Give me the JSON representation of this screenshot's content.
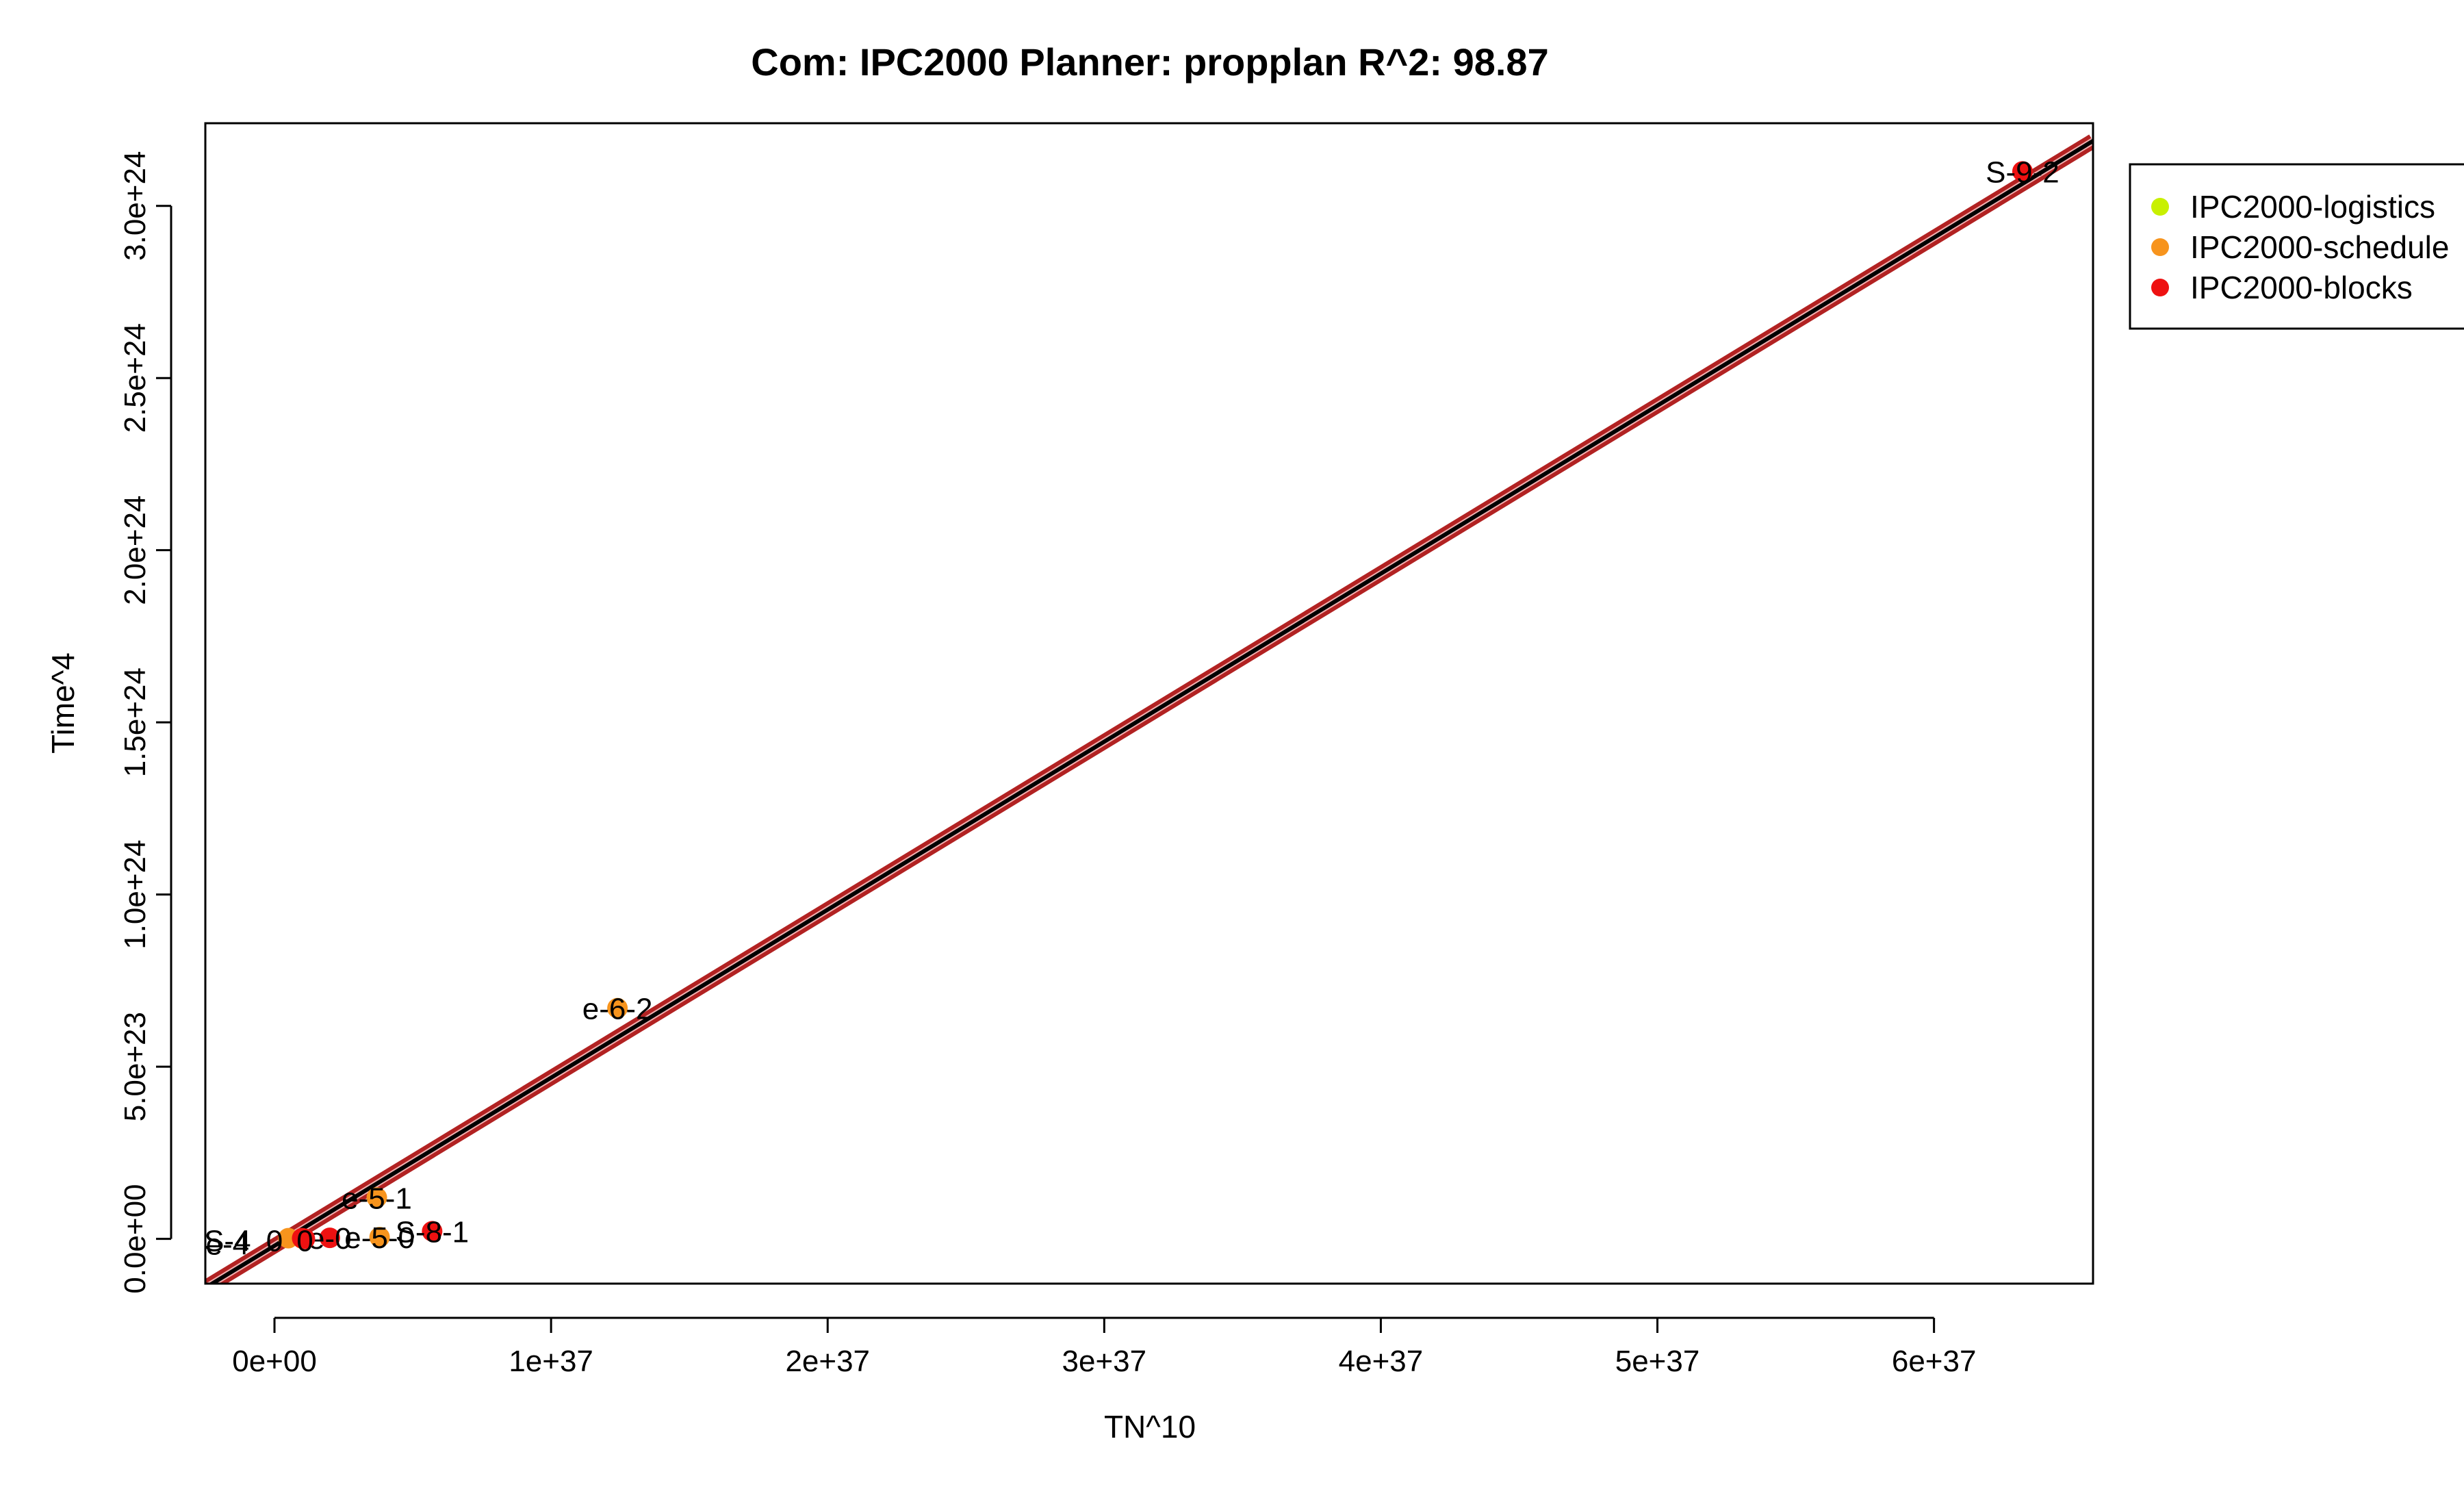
{
  "chart_data": {
    "type": "scatter",
    "title": "Com: IPC2000 Planner: propplan R^2: 98.87",
    "xlabel": "TN^10",
    "ylabel": "Time^4",
    "xlim": [
      -2.5e+36,
      6.575e+37
    ],
    "ylim": [
      -1.3e+23,
      3.24e+24
    ],
    "x_ticks": [
      {
        "value": 0,
        "label": "0e+00"
      },
      {
        "value": 1e+37,
        "label": "1e+37"
      },
      {
        "value": 2e+37,
        "label": "2e+37"
      },
      {
        "value": 3e+37,
        "label": "3e+37"
      },
      {
        "value": 4e+37,
        "label": "4e+37"
      },
      {
        "value": 5e+37,
        "label": "5e+37"
      },
      {
        "value": 6e+37,
        "label": "6e+37"
      }
    ],
    "y_ticks": [
      {
        "value": 0,
        "label": "0.0e+00"
      },
      {
        "value": 5e+23,
        "label": "5.0e+23"
      },
      {
        "value": 1e+24,
        "label": "1.0e+24"
      },
      {
        "value": 1.5e+24,
        "label": "1.5e+24"
      },
      {
        "value": 2e+24,
        "label": "2.0e+24"
      },
      {
        "value": 2.5e+24,
        "label": "2.5e+24"
      },
      {
        "value": 3e+24,
        "label": "3.0e+24"
      }
    ],
    "regression": {
      "slope": 4.88e-14,
      "intercept": -2e+22
    },
    "legend_position": "right-outside",
    "series": [
      {
        "name": "IPC2000-logistics",
        "color": "#c8f000",
        "points": []
      },
      {
        "name": "IPC2000-schedule",
        "color": "#f7941d",
        "points": [
          {
            "x": 1.24e+37,
            "y": 6.7e+23,
            "label": "e-6-2"
          },
          {
            "x": 3.7e+36,
            "y": 1.2e+23,
            "label": "e-5-1"
          },
          {
            "x": 3.8e+36,
            "y": 5e+21,
            "label": "e-5-0"
          },
          {
            "x": 5e+35,
            "y": 2e+21,
            "label": ""
          },
          {
            "x": 1e+36,
            "y": 1e+21,
            "label": ""
          }
        ]
      },
      {
        "name": "IPC2000-blocks",
        "color": "#ee1111",
        "points": [
          {
            "x": 6.32e+37,
            "y": 3.1e+24,
            "label": "S-9-2"
          },
          {
            "x": 5.7e+36,
            "y": 2.2e+22,
            "label": "S-8-1"
          },
          {
            "x": 2e+36,
            "y": 3e+21,
            "label": "e-0"
          },
          {
            "x": 1e+36,
            "y": 2e+21,
            "label": ""
          },
          {
            "x": 1.1e+36,
            "y": 0,
            "label": ""
          }
        ]
      }
    ],
    "cluster_labels": [
      {
        "x": -1.7e+36,
        "y": 0,
        "label": "S-4"
      },
      {
        "x": -1.7e+36,
        "y": -1e+22,
        "label": "e-4"
      },
      {
        "x": 0,
        "y": 0,
        "label": "0"
      },
      {
        "x": 1.1e+36,
        "y": 0,
        "label": "0"
      }
    ]
  }
}
